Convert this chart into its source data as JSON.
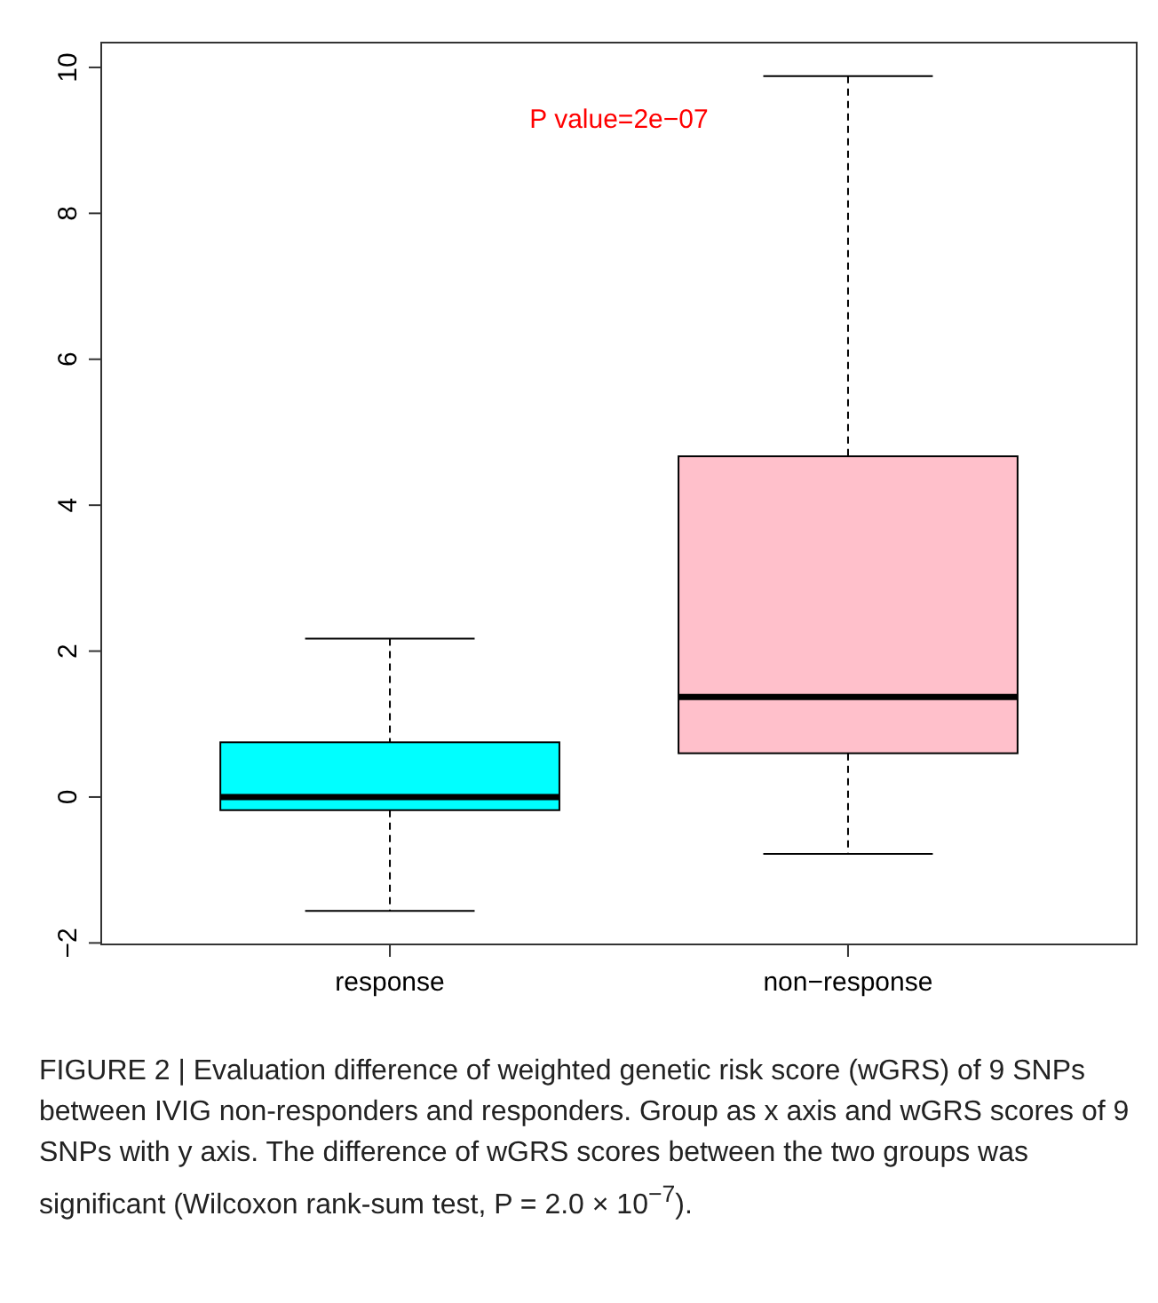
{
  "chart_data": {
    "type": "box",
    "categories": [
      "response",
      "non−response"
    ],
    "series": [
      {
        "color": "#00ffff",
        "boxes": [
          {
            "low": -1.56,
            "q1": -0.18,
            "median": 0,
            "q3": 0.75,
            "high": 2.17
          },
          null
        ]
      },
      {
        "color": "#ffc0cb",
        "boxes": [
          null,
          {
            "low": -0.78,
            "q1": 0.6,
            "median": 1.37,
            "q3": 4.67,
            "high": 9.88
          }
        ]
      }
    ],
    "ylim": [
      -2.02,
      10.34
    ],
    "yticks": [
      -2,
      0,
      2,
      4,
      6,
      8,
      10
    ],
    "grid": false,
    "annotations": [
      "P value=2e−07",
      "FIGURE 2 | Evaluation difference of weighted genetic risk score (wGRS) of 9 SNPs between IVIG non-responders and responders. Group as x axis and wGRS scores of 9 SNPs with y axis. The difference of wGRS scores between the two groups was significant (Wilcoxon rank-sum test, P = 2.0 × 10$^{−7}$)."
    ]
  }
}
